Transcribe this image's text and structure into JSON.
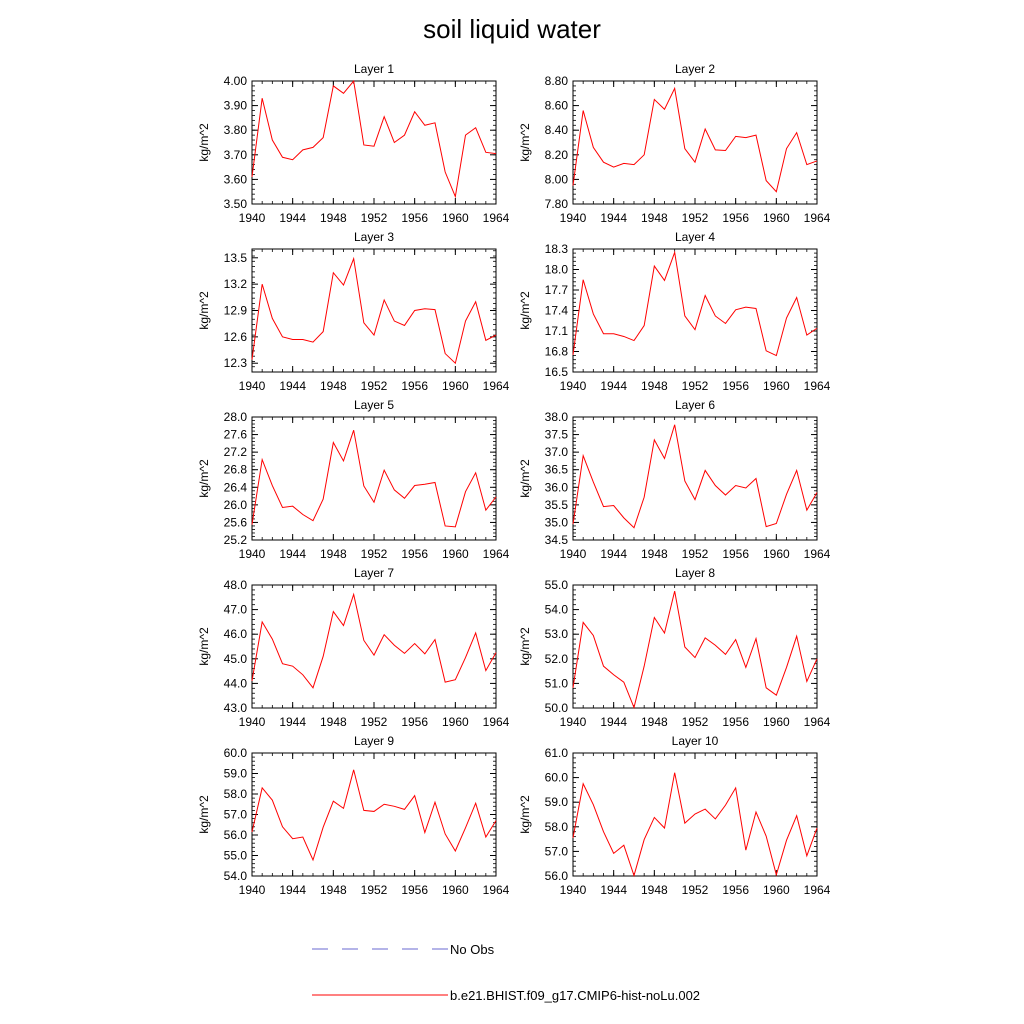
{
  "title": "soil liquid water",
  "legend": {
    "obs_label": "No Obs",
    "obs_color": "#6a6ad0",
    "model_label": "b.e21.BHIST.f09_g17.CMIP6-hist-noLu.002",
    "model_color": "#ff0000"
  },
  "chart_data": [
    {
      "type": "line",
      "title": "Layer 1",
      "ylabel": "kg/m^2",
      "xlim": [
        1940,
        1964
      ],
      "ylim": [
        3.5,
        4.0
      ],
      "x_ticks": [
        "1940",
        "1944",
        "1948",
        "1952",
        "1956",
        "1960",
        "1964"
      ],
      "y_ticks": [
        "3.50",
        "3.60",
        "3.70",
        "3.80",
        "3.90",
        "4.00"
      ],
      "x": [
        1940,
        1941,
        1942,
        1943,
        1944,
        1945,
        1946,
        1947,
        1948,
        1949,
        1950,
        1951,
        1952,
        1953,
        1954,
        1955,
        1956,
        1957,
        1958,
        1959,
        1960,
        1961,
        1962,
        1963,
        1964
      ],
      "series": [
        {
          "name": "b.e21.BHIST.f09_g17.CMIP6-hist-noLu.002",
          "values": [
            3.61,
            3.93,
            3.76,
            3.69,
            3.68,
            3.72,
            3.73,
            3.77,
            3.98,
            3.95,
            4.0,
            3.74,
            3.735,
            3.855,
            3.75,
            3.78,
            3.875,
            3.82,
            3.83,
            3.63,
            3.53,
            3.78,
            3.81,
            3.71,
            3.705
          ]
        }
      ]
    },
    {
      "type": "line",
      "title": "Layer 2",
      "ylabel": "kg/m^2",
      "xlim": [
        1940,
        1964
      ],
      "ylim": [
        7.8,
        8.8
      ],
      "x_ticks": [
        "1940",
        "1944",
        "1948",
        "1952",
        "1956",
        "1960",
        "1964"
      ],
      "y_ticks": [
        "7.80",
        "8.00",
        "8.20",
        "8.40",
        "8.60",
        "8.80"
      ],
      "x": [
        1940,
        1941,
        1942,
        1943,
        1944,
        1945,
        1946,
        1947,
        1948,
        1949,
        1950,
        1951,
        1952,
        1953,
        1954,
        1955,
        1956,
        1957,
        1958,
        1959,
        1960,
        1961,
        1962,
        1963,
        1964
      ],
      "series": [
        {
          "name": "b.e21.BHIST.f09_g17.CMIP6-hist-noLu.002",
          "values": [
            7.95,
            8.56,
            8.26,
            8.14,
            8.1,
            8.13,
            8.12,
            8.2,
            8.65,
            8.57,
            8.74,
            8.25,
            8.14,
            8.41,
            8.24,
            8.235,
            8.35,
            8.34,
            8.36,
            7.99,
            7.9,
            8.25,
            8.38,
            8.12,
            8.15
          ]
        }
      ]
    },
    {
      "type": "line",
      "title": "Layer 3",
      "ylabel": "kg/m^2",
      "xlim": [
        1940,
        1964
      ],
      "ylim": [
        12.2,
        13.6
      ],
      "x_ticks": [
        "1940",
        "1944",
        "1948",
        "1952",
        "1956",
        "1960",
        "1964"
      ],
      "y_ticks": [
        "12.3",
        "12.6",
        "12.9",
        "13.2",
        "13.5"
      ],
      "x": [
        1940,
        1941,
        1942,
        1943,
        1944,
        1945,
        1946,
        1947,
        1948,
        1949,
        1950,
        1951,
        1952,
        1953,
        1954,
        1955,
        1956,
        1957,
        1958,
        1959,
        1960,
        1961,
        1962,
        1963,
        1964
      ],
      "series": [
        {
          "name": "b.e21.BHIST.f09_g17.CMIP6-hist-noLu.002",
          "values": [
            12.34,
            13.2,
            12.81,
            12.6,
            12.57,
            12.57,
            12.54,
            12.66,
            13.33,
            13.19,
            13.49,
            12.76,
            12.62,
            13.02,
            12.78,
            12.73,
            12.9,
            12.92,
            12.91,
            12.41,
            12.3,
            12.78,
            13.0,
            12.56,
            12.62
          ]
        }
      ]
    },
    {
      "type": "line",
      "title": "Layer 4",
      "ylabel": "kg/m^2",
      "xlim": [
        1940,
        1964
      ],
      "ylim": [
        16.5,
        18.3
      ],
      "x_ticks": [
        "1940",
        "1944",
        "1948",
        "1952",
        "1956",
        "1960",
        "1964"
      ],
      "y_ticks": [
        "16.5",
        "16.8",
        "17.1",
        "17.4",
        "17.7",
        "18.0",
        "18.3"
      ],
      "x": [
        1940,
        1941,
        1942,
        1943,
        1944,
        1945,
        1946,
        1947,
        1948,
        1949,
        1950,
        1951,
        1952,
        1953,
        1954,
        1955,
        1956,
        1957,
        1958,
        1959,
        1960,
        1961,
        1962,
        1963,
        1964
      ],
      "series": [
        {
          "name": "b.e21.BHIST.f09_g17.CMIP6-hist-noLu.002",
          "values": [
            16.75,
            17.85,
            17.35,
            17.06,
            17.06,
            17.02,
            16.96,
            17.18,
            18.05,
            17.84,
            18.25,
            17.32,
            17.12,
            17.62,
            17.32,
            17.21,
            17.41,
            17.45,
            17.43,
            16.81,
            16.74,
            17.29,
            17.59,
            17.04,
            17.14
          ]
        }
      ]
    },
    {
      "type": "line",
      "title": "Layer 5",
      "ylabel": "kg/m^2",
      "xlim": [
        1940,
        1964
      ],
      "ylim": [
        25.2,
        28.0
      ],
      "x_ticks": [
        "1940",
        "1944",
        "1948",
        "1952",
        "1956",
        "1960",
        "1964"
      ],
      "y_ticks": [
        "25.2",
        "25.6",
        "26.0",
        "26.4",
        "26.8",
        "27.2",
        "27.6",
        "28.0"
      ],
      "x": [
        1940,
        1941,
        1942,
        1943,
        1944,
        1945,
        1946,
        1947,
        1948,
        1949,
        1950,
        1951,
        1952,
        1953,
        1954,
        1955,
        1956,
        1957,
        1958,
        1959,
        1960,
        1961,
        1962,
        1963,
        1964
      ],
      "series": [
        {
          "name": "b.e21.BHIST.f09_g17.CMIP6-hist-noLu.002",
          "values": [
            25.55,
            27.03,
            26.44,
            25.94,
            25.97,
            25.78,
            25.64,
            26.13,
            27.42,
            27.0,
            27.7,
            26.43,
            26.06,
            26.79,
            26.34,
            26.15,
            26.44,
            26.47,
            26.51,
            25.52,
            25.5,
            26.3,
            26.73,
            25.88,
            26.18
          ]
        }
      ]
    },
    {
      "type": "line",
      "title": "Layer 6",
      "ylabel": "kg/m^2",
      "xlim": [
        1940,
        1964
      ],
      "ylim": [
        34.5,
        38.0
      ],
      "x_ticks": [
        "1940",
        "1944",
        "1948",
        "1952",
        "1956",
        "1960",
        "1964"
      ],
      "y_ticks": [
        "34.5",
        "35.0",
        "35.5",
        "36.0",
        "36.5",
        "37.0",
        "37.5",
        "38.0"
      ],
      "x": [
        1940,
        1941,
        1942,
        1943,
        1944,
        1945,
        1946,
        1947,
        1948,
        1949,
        1950,
        1951,
        1952,
        1953,
        1954,
        1955,
        1956,
        1957,
        1958,
        1959,
        1960,
        1961,
        1962,
        1963,
        1964
      ],
      "series": [
        {
          "name": "b.e21.BHIST.f09_g17.CMIP6-hist-noLu.002",
          "values": [
            34.95,
            36.9,
            36.15,
            35.45,
            35.48,
            35.13,
            34.85,
            35.72,
            37.35,
            36.82,
            37.78,
            36.18,
            35.65,
            36.48,
            36.05,
            35.78,
            36.05,
            35.98,
            36.25,
            34.88,
            34.97,
            35.8,
            36.48,
            35.35,
            35.85
          ]
        }
      ]
    },
    {
      "type": "line",
      "title": "Layer 7",
      "ylabel": "kg/m^2",
      "xlim": [
        1940,
        1964
      ],
      "ylim": [
        43.0,
        48.0
      ],
      "x_ticks": [
        "1940",
        "1944",
        "1948",
        "1952",
        "1956",
        "1960",
        "1964"
      ],
      "y_ticks": [
        "43.0",
        "44.0",
        "45.0",
        "46.0",
        "47.0",
        "48.0"
      ],
      "x": [
        1940,
        1941,
        1942,
        1943,
        1944,
        1945,
        1946,
        1947,
        1948,
        1949,
        1950,
        1951,
        1952,
        1953,
        1954,
        1955,
        1956,
        1957,
        1958,
        1959,
        1960,
        1961,
        1962,
        1963,
        1964
      ],
      "series": [
        {
          "name": "b.e21.BHIST.f09_g17.CMIP6-hist-noLu.002",
          "values": [
            44.1,
            46.5,
            45.8,
            44.8,
            44.7,
            44.35,
            43.82,
            45.1,
            46.92,
            46.35,
            47.62,
            45.75,
            45.15,
            45.98,
            45.55,
            45.22,
            45.62,
            45.2,
            45.78,
            44.05,
            44.15,
            45.05,
            46.05,
            44.52,
            45.25
          ]
        }
      ]
    },
    {
      "type": "line",
      "title": "Layer 8",
      "ylabel": "kg/m^2",
      "xlim": [
        1940,
        1964
      ],
      "ylim": [
        50.0,
        55.0
      ],
      "x_ticks": [
        "1940",
        "1944",
        "1948",
        "1952",
        "1956",
        "1960",
        "1964"
      ],
      "y_ticks": [
        "50.0",
        "51.0",
        "52.0",
        "53.0",
        "54.0",
        "55.0"
      ],
      "x": [
        1940,
        1941,
        1942,
        1943,
        1944,
        1945,
        1946,
        1947,
        1948,
        1949,
        1950,
        1951,
        1952,
        1953,
        1954,
        1955,
        1956,
        1957,
        1958,
        1959,
        1960,
        1961,
        1962,
        1963,
        1964
      ],
      "series": [
        {
          "name": "b.e21.BHIST.f09_g17.CMIP6-hist-noLu.002",
          "values": [
            50.82,
            53.48,
            52.95,
            51.7,
            51.35,
            51.05,
            50.02,
            51.7,
            53.68,
            53.05,
            54.75,
            52.48,
            52.05,
            52.85,
            52.55,
            52.18,
            52.78,
            51.65,
            52.82,
            50.82,
            50.52,
            51.65,
            52.92,
            51.08,
            52.0
          ]
        }
      ]
    },
    {
      "type": "line",
      "title": "Layer 9",
      "ylabel": "kg/m^2",
      "xlim": [
        1940,
        1964
      ],
      "ylim": [
        54.0,
        60.0
      ],
      "x_ticks": [
        "1940",
        "1944",
        "1948",
        "1952",
        "1956",
        "1960",
        "1964"
      ],
      "y_ticks": [
        "54.0",
        "55.0",
        "56.0",
        "57.0",
        "58.0",
        "59.0",
        "60.0"
      ],
      "x": [
        1940,
        1941,
        1942,
        1943,
        1944,
        1945,
        1946,
        1947,
        1948,
        1949,
        1950,
        1951,
        1952,
        1953,
        1954,
        1955,
        1956,
        1957,
        1958,
        1959,
        1960,
        1961,
        1962,
        1963,
        1964
      ],
      "series": [
        {
          "name": "b.e21.BHIST.f09_g17.CMIP6-hist-noLu.002",
          "values": [
            56.15,
            58.3,
            57.7,
            56.4,
            55.82,
            55.9,
            54.78,
            56.38,
            57.65,
            57.3,
            59.18,
            57.2,
            57.15,
            57.5,
            57.4,
            57.25,
            57.92,
            56.12,
            57.6,
            56.05,
            55.22,
            56.35,
            57.55,
            55.9,
            56.7
          ]
        }
      ]
    },
    {
      "type": "line",
      "title": "Layer 10",
      "ylabel": "kg/m^2",
      "xlim": [
        1940,
        1964
      ],
      "ylim": [
        56.0,
        61.0
      ],
      "x_ticks": [
        "1940",
        "1944",
        "1948",
        "1952",
        "1956",
        "1960",
        "1964"
      ],
      "y_ticks": [
        "56.0",
        "57.0",
        "58.0",
        "59.0",
        "60.0",
        "61.0"
      ],
      "x": [
        1940,
        1941,
        1942,
        1943,
        1944,
        1945,
        1946,
        1947,
        1948,
        1949,
        1950,
        1951,
        1952,
        1953,
        1954,
        1955,
        1956,
        1957,
        1958,
        1959,
        1960,
        1961,
        1962,
        1963,
        1964
      ],
      "series": [
        {
          "name": "b.e21.BHIST.f09_g17.CMIP6-hist-noLu.002",
          "values": [
            57.55,
            59.75,
            58.9,
            57.8,
            56.92,
            57.25,
            56.02,
            57.48,
            58.38,
            57.95,
            60.2,
            58.15,
            58.52,
            58.72,
            58.32,
            58.88,
            59.58,
            57.05,
            58.6,
            57.62,
            56.05,
            57.45,
            58.45,
            56.82,
            57.95
          ]
        }
      ]
    }
  ]
}
